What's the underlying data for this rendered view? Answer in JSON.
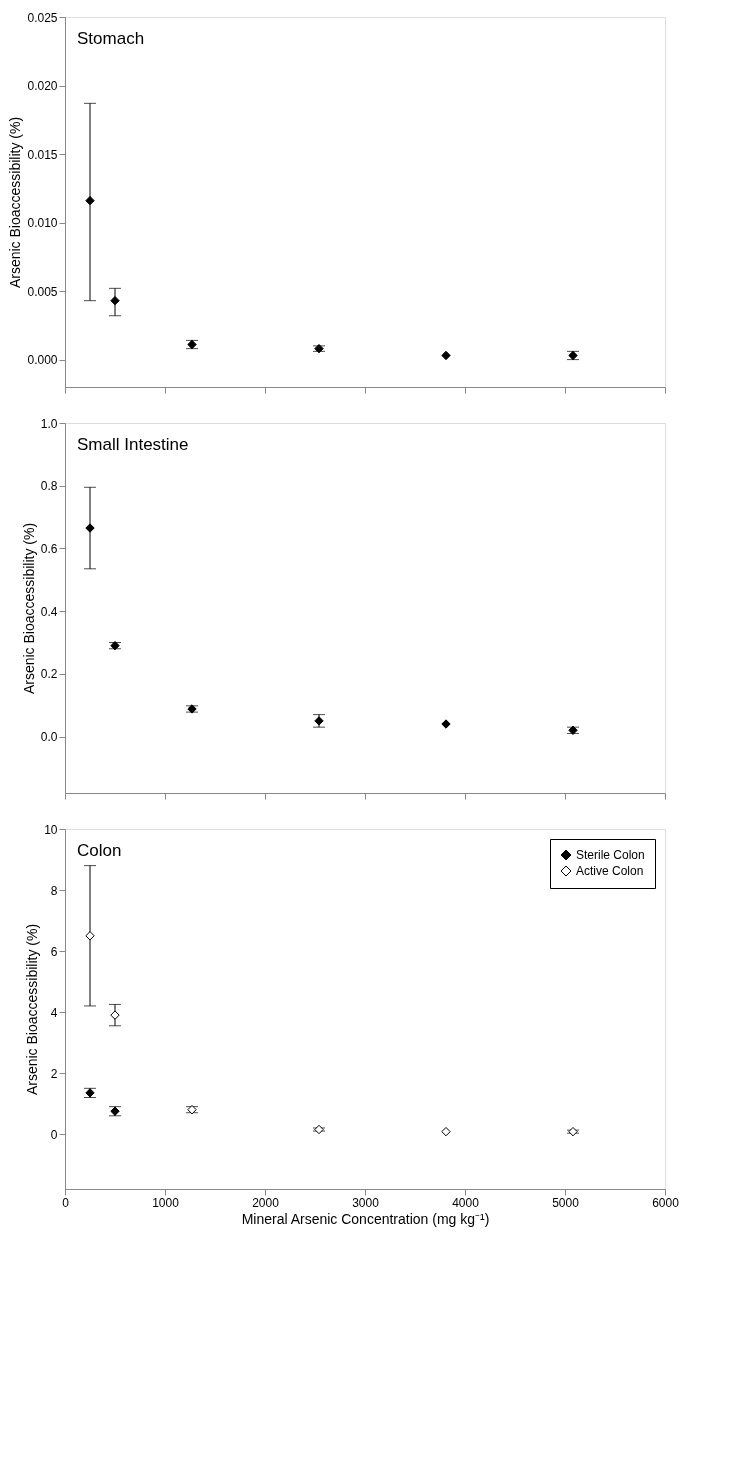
{
  "chart_data": [
    {
      "type": "scatter",
      "annotations": [
        "Stomach"
      ],
      "ylabel": "Arsenic Bioaccessibility (%)",
      "marker": "diamond",
      "grid": false,
      "legend": false,
      "tick_labels": "y",
      "xlim": [
        0,
        6000
      ],
      "xticks": [
        0,
        1000,
        2000,
        3000,
        4000,
        5000,
        6000
      ],
      "ylim": [
        -0.002,
        0.025
      ],
      "yticks": [
        {
          "value": 0,
          "label": "0.000"
        },
        {
          "value": 0.005,
          "label": "0.005"
        },
        {
          "value": 0.01,
          "label": "0.010"
        },
        {
          "value": 0.015,
          "label": "0.015"
        },
        {
          "value": 0.02,
          "label": "0.020"
        },
        {
          "value": 0.025,
          "label": "0.025"
        }
      ],
      "series": [
        {
          "color": "#000000",
          "x": [
            250,
            500,
            1270,
            2540,
            3810,
            5080
          ],
          "values": [
            0.0116,
            0.0043,
            0.0011,
            0.0008,
            0.0003,
            0.0003
          ],
          "errors": [
            [
              0.0043,
              0.0187
            ],
            [
              0.0032,
              0.0052
            ],
            0.0003,
            0.0002,
            null,
            0.0003
          ]
        }
      ]
    },
    {
      "type": "scatter",
      "annotations": [
        "Small Intestine"
      ],
      "ylabel": "Arsenic Bioaccessibility (%)",
      "marker": "diamond",
      "grid": false,
      "legend": false,
      "tick_labels": "y",
      "xlim": [
        0,
        6000
      ],
      "xticks": [
        0,
        1000,
        2000,
        3000,
        4000,
        5000,
        6000
      ],
      "ylim": [
        -0.18,
        1.0
      ],
      "yticks": [
        {
          "value": 0,
          "label": "0.0"
        },
        0.2,
        0.4,
        0.6,
        0.8,
        {
          "value": 1,
          "label": "1.0"
        }
      ],
      "series": [
        {
          "color": "#000000",
          "x": [
            250,
            500,
            1270,
            2540,
            3810,
            5080
          ],
          "values": [
            0.665,
            0.29,
            0.088,
            0.05,
            0.04,
            0.02
          ],
          "errors": [
            [
              0.535,
              0.795
            ],
            0.01,
            0.01,
            0.02,
            null,
            0.01
          ]
        }
      ]
    },
    {
      "type": "scatter",
      "annotations": [
        "Colon"
      ],
      "xlabel": "Mineral Arsenic Concentration (mg kg⁻¹)",
      "ylabel": "Arsenic Bioaccessibility (%)",
      "marker": "diamond",
      "grid": false,
      "legend": "top right",
      "xlim": [
        0,
        6000
      ],
      "xticks": [
        0,
        1000,
        2000,
        3000,
        4000,
        5000,
        6000
      ],
      "ylim": [
        -1.8,
        10
      ],
      "yticks": [
        0,
        2,
        4,
        6,
        8,
        10
      ],
      "series": [
        {
          "name": "Sterile Colon",
          "color": "#000000",
          "x": [
            250,
            500
          ],
          "values": [
            1.35,
            0.75
          ],
          "errors": [
            0.15,
            0.15
          ]
        },
        {
          "name": "Active Colon",
          "color": "#ffffff",
          "x": [
            250,
            500,
            1270,
            2540,
            3810,
            5080
          ],
          "values": [
            6.5,
            3.9,
            0.8,
            0.15,
            0.08,
            0.08
          ],
          "errors": [
            [
              4.2,
              8.8
            ],
            [
              3.55,
              4.25
            ],
            0.1,
            0.05,
            null,
            0.05
          ]
        }
      ]
    }
  ]
}
